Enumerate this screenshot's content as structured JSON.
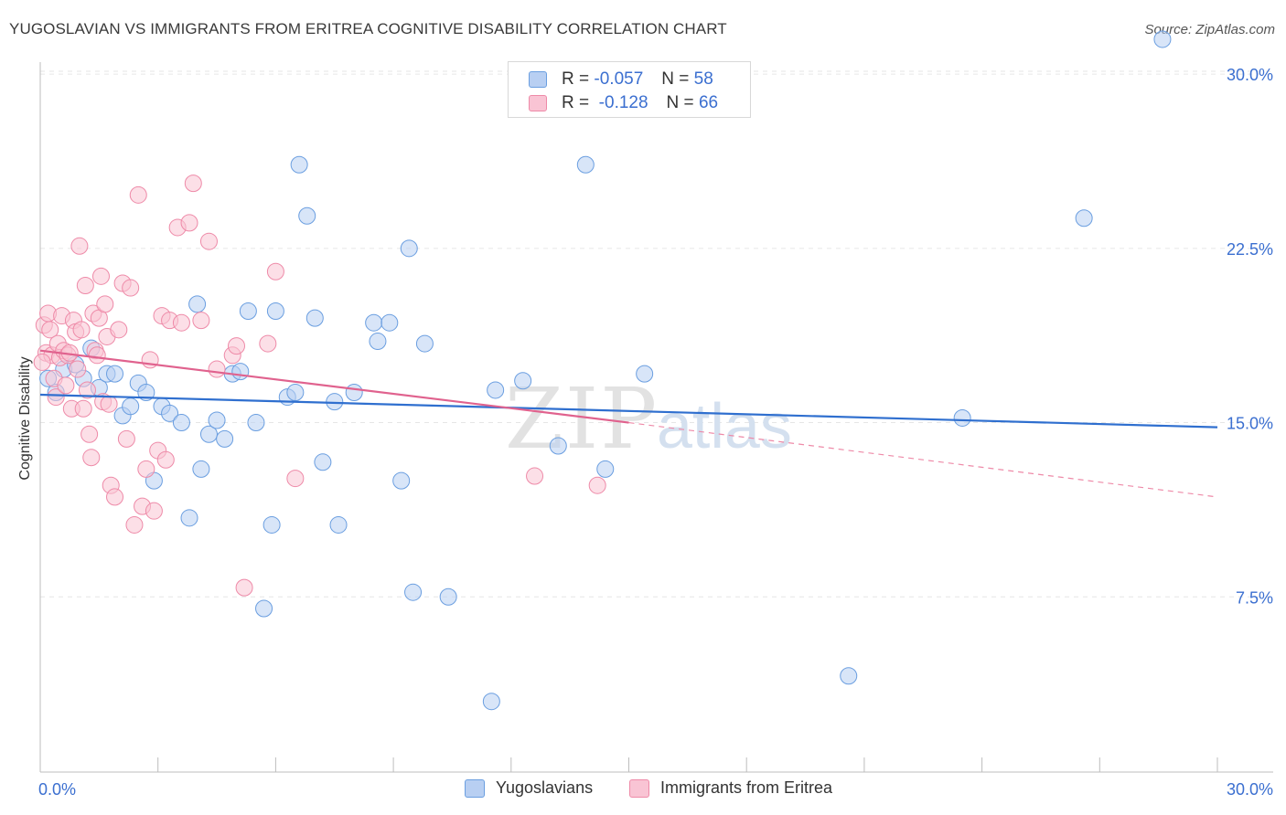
{
  "title": "YUGOSLAVIAN VS IMMIGRANTS FROM ERITREA COGNITIVE DISABILITY CORRELATION CHART",
  "source": "Source: ZipAtlas.com",
  "watermark": {
    "zip": "ZIP",
    "atlas": "atlas"
  },
  "legend": {
    "r_label": "R =",
    "n_label": "N =",
    "series": [
      {
        "r": "-0.057",
        "n": "58"
      },
      {
        "r": "-0.128",
        "n": "66"
      }
    ]
  },
  "chart_data": {
    "type": "scatter",
    "title": "YUGOSLAVIAN VS IMMIGRANTS FROM ERITREA COGNITIVE DISABILITY CORRELATION CHART",
    "xlabel": "",
    "ylabel": "Cognitive Disability",
    "xlim": [
      0,
      30
    ],
    "ylim": [
      0,
      30
    ],
    "x_tick_labels": [
      "0.0%",
      "30.0%"
    ],
    "y_tick_values": [
      7.5,
      15.0,
      22.5,
      30.0
    ],
    "y_tick_labels": [
      "7.5%",
      "15.0%",
      "22.5%",
      "30.0%"
    ],
    "grid": true,
    "legend_position": "top-center",
    "series": [
      {
        "name": "Yugoslavians",
        "color": "#6a9ee0",
        "fill": "#b8cff2",
        "r": -0.057,
        "n": 58,
        "trend": {
          "x0": 0.0,
          "y0": 16.2,
          "x1": 30.0,
          "y1": 14.8
        },
        "points": [
          [
            0.2,
            16.9
          ],
          [
            0.4,
            16.3
          ],
          [
            0.6,
            17.3
          ],
          [
            0.9,
            17.5
          ],
          [
            1.1,
            16.9
          ],
          [
            1.3,
            18.2
          ],
          [
            1.5,
            16.5
          ],
          [
            1.7,
            17.1
          ],
          [
            1.9,
            17.1
          ],
          [
            2.1,
            15.3
          ],
          [
            2.3,
            15.7
          ],
          [
            2.5,
            16.7
          ],
          [
            2.7,
            16.3
          ],
          [
            2.9,
            12.5
          ],
          [
            3.1,
            15.7
          ],
          [
            3.3,
            15.4
          ],
          [
            3.6,
            15.0
          ],
          [
            3.8,
            10.9
          ],
          [
            4.0,
            20.1
          ],
          [
            4.1,
            13.0
          ],
          [
            4.3,
            14.5
          ],
          [
            4.5,
            15.1
          ],
          [
            4.7,
            14.3
          ],
          [
            4.9,
            17.1
          ],
          [
            5.1,
            17.2
          ],
          [
            5.3,
            19.8
          ],
          [
            5.5,
            15.0
          ],
          [
            5.7,
            7.0
          ],
          [
            5.9,
            10.6
          ],
          [
            6.0,
            19.8
          ],
          [
            6.3,
            16.1
          ],
          [
            6.5,
            16.3
          ],
          [
            6.6,
            26.1
          ],
          [
            6.8,
            23.9
          ],
          [
            7.0,
            19.5
          ],
          [
            7.2,
            13.3
          ],
          [
            7.5,
            15.9
          ],
          [
            7.6,
            10.6
          ],
          [
            8.0,
            16.3
          ],
          [
            8.5,
            19.3
          ],
          [
            8.6,
            18.5
          ],
          [
            8.9,
            19.3
          ],
          [
            9.2,
            12.5
          ],
          [
            9.4,
            22.5
          ],
          [
            9.5,
            7.7
          ],
          [
            9.8,
            18.4
          ],
          [
            10.4,
            7.5
          ],
          [
            11.5,
            3.0
          ],
          [
            11.6,
            16.4
          ],
          [
            12.3,
            16.8
          ],
          [
            13.2,
            14.0
          ],
          [
            13.9,
            26.1
          ],
          [
            14.4,
            13.0
          ],
          [
            15.4,
            17.1
          ],
          [
            20.6,
            4.1
          ],
          [
            23.5,
            15.2
          ],
          [
            26.6,
            23.8
          ],
          [
            28.6,
            31.5
          ]
        ]
      },
      {
        "name": "Immigrants from Eritrea",
        "color": "#ee8aa8",
        "fill": "#f9c4d4",
        "r": -0.128,
        "n": 66,
        "trend": {
          "x0": 0.0,
          "y0": 18.1,
          "x1": 15.0,
          "y1": 15.0
        },
        "trend_dashed": {
          "x0": 15.0,
          "y0": 15.0,
          "x1": 30.0,
          "y1": 11.8
        },
        "points": [
          [
            0.1,
            19.2
          ],
          [
            0.15,
            18.0
          ],
          [
            0.2,
            19.7
          ],
          [
            0.25,
            19.0
          ],
          [
            0.3,
            17.9
          ],
          [
            0.35,
            16.9
          ],
          [
            0.4,
            16.1
          ],
          [
            0.45,
            18.4
          ],
          [
            0.5,
            17.8
          ],
          [
            0.55,
            19.6
          ],
          [
            0.6,
            18.1
          ],
          [
            0.65,
            16.6
          ],
          [
            0.7,
            17.9
          ],
          [
            0.75,
            18.0
          ],
          [
            0.8,
            15.6
          ],
          [
            0.85,
            19.4
          ],
          [
            0.9,
            18.9
          ],
          [
            0.95,
            17.3
          ],
          [
            1.0,
            22.6
          ],
          [
            1.05,
            19.0
          ],
          [
            1.1,
            15.6
          ],
          [
            1.15,
            20.9
          ],
          [
            1.2,
            16.4
          ],
          [
            1.25,
            14.5
          ],
          [
            1.3,
            13.5
          ],
          [
            1.35,
            19.7
          ],
          [
            1.4,
            18.1
          ],
          [
            1.45,
            17.9
          ],
          [
            1.5,
            19.5
          ],
          [
            1.55,
            21.3
          ],
          [
            1.6,
            15.9
          ],
          [
            1.65,
            20.1
          ],
          [
            1.7,
            18.7
          ],
          [
            1.75,
            15.8
          ],
          [
            1.8,
            12.3
          ],
          [
            1.9,
            11.8
          ],
          [
            2.0,
            19.0
          ],
          [
            2.1,
            21.0
          ],
          [
            2.2,
            14.3
          ],
          [
            2.3,
            20.8
          ],
          [
            2.4,
            10.6
          ],
          [
            2.5,
            24.8
          ],
          [
            2.6,
            11.4
          ],
          [
            2.7,
            13.0
          ],
          [
            2.8,
            17.7
          ],
          [
            2.9,
            11.2
          ],
          [
            3.0,
            13.8
          ],
          [
            3.1,
            19.6
          ],
          [
            3.2,
            13.4
          ],
          [
            3.3,
            19.4
          ],
          [
            3.5,
            23.4
          ],
          [
            3.6,
            19.3
          ],
          [
            3.8,
            23.6
          ],
          [
            3.9,
            25.3
          ],
          [
            4.1,
            19.4
          ],
          [
            4.3,
            22.8
          ],
          [
            4.5,
            17.3
          ],
          [
            4.9,
            17.9
          ],
          [
            5.0,
            18.3
          ],
          [
            5.2,
            7.9
          ],
          [
            5.8,
            18.4
          ],
          [
            6.0,
            21.5
          ],
          [
            6.5,
            12.6
          ],
          [
            12.6,
            12.7
          ],
          [
            14.2,
            12.3
          ],
          [
            0.05,
            17.6
          ]
        ]
      }
    ]
  }
}
